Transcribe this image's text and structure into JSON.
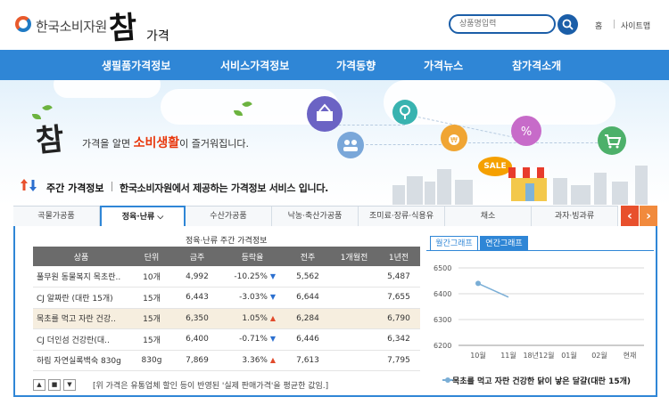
{
  "header": {
    "org_name": "한국소비자원",
    "brand_big": "참",
    "brand_small": "가격",
    "search_placeholder": "상품명입력",
    "util_home": "홈",
    "util_sitemap": "사이트맵"
  },
  "nav": [
    "생필품가격정보",
    "서비스가격정보",
    "가격동향",
    "가격뉴스",
    "참가격소개"
  ],
  "banner": {
    "brand": "참",
    "slogan_pre": "가격을 알면 ",
    "slogan_em": "소비생활",
    "slogan_post": "이 즐거워집니다.",
    "sale_badge": "SALE"
  },
  "section": {
    "title": "주간 가격정보",
    "description": "한국소비자원에서 제공하는 가격정보 서비스 입니다."
  },
  "tabs": [
    {
      "label": "곡물가공품",
      "active": false
    },
    {
      "label": "정육·난류 ⌵",
      "active": true
    },
    {
      "label": "수산가공품",
      "active": false
    },
    {
      "label": "낙농·축산가공품",
      "active": false
    },
    {
      "label": "조미료·장류·식용유",
      "active": false
    },
    {
      "label": "채소",
      "active": false
    },
    {
      "label": "과자·빙과류",
      "active": false
    }
  ],
  "tab_prev": "‹",
  "tab_next": "›",
  "table": {
    "caption": "정육·난류 주간 가격정보",
    "headers": [
      "상품",
      "단위",
      "금주",
      "등락율",
      "전주",
      "1개월전",
      "1년전"
    ],
    "rows": [
      {
        "name": "풀무원 동물복지 목초란..",
        "unit": "10개",
        "this_week": "4,992",
        "rate": "-10.25%",
        "dir": "down",
        "last_week": "5,562",
        "month_ago": "",
        "year_ago": "5,487"
      },
      {
        "name": "CJ 알짜란 (대란 15개)",
        "unit": "15개",
        "this_week": "6,443",
        "rate": "-3.03%",
        "dir": "down",
        "last_week": "6,644",
        "month_ago": "",
        "year_ago": "7,655"
      },
      {
        "name": "목초를 먹고 자란 건강..",
        "unit": "15개",
        "this_week": "6,350",
        "rate": "1.05%",
        "dir": "up",
        "last_week": "6,284",
        "month_ago": "",
        "year_ago": "6,790"
      },
      {
        "name": "CJ 더인섬 건강란(대..",
        "unit": "15개",
        "this_week": "6,400",
        "rate": "-0.71%",
        "dir": "down",
        "last_week": "6,446",
        "month_ago": "",
        "year_ago": "6,342"
      },
      {
        "name": "하림 자연실록백숙 830g",
        "unit": "830g",
        "this_week": "7,869",
        "rate": "3.36%",
        "dir": "up",
        "last_week": "7,613",
        "month_ago": "",
        "year_ago": "7,795"
      }
    ],
    "controls": [
      "▲",
      "■",
      "▼"
    ],
    "note": "[위 가격은 유통업체 할인 등이 반영된 '실제 판매가격'을 평균한 값임.]"
  },
  "chart_tabs": {
    "monthly": "월간그래프",
    "yearly": "연간그래프"
  },
  "chart_data": {
    "type": "line",
    "categories": [
      "10월",
      "11월",
      "18년12월",
      "01월",
      "02월",
      "현재"
    ],
    "yticks": [
      6500,
      6400,
      6300,
      6200
    ],
    "ylim": [
      6200,
      6500
    ],
    "series": [
      {
        "name": "목초를 먹고 자란 건강한 닭이 낳은 달걀(대란 15개)",
        "values": [
          6440,
          6387,
          null,
          null,
          null,
          null
        ],
        "color": "#7aaed6"
      }
    ]
  },
  "colors": {
    "primary": "#2f86d6",
    "up": "#e14a2b",
    "down": "#2b6fcf",
    "header_row": "#6b6b6b",
    "highlight": "#f6eedf"
  }
}
